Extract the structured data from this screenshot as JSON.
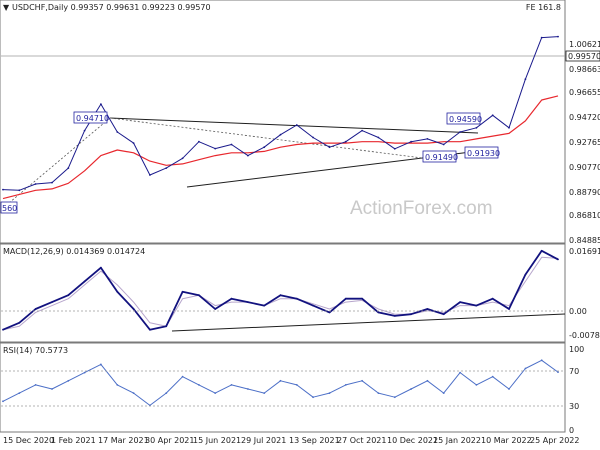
{
  "header": {
    "symbol_title": "USDCHF,Daily  0.99357 0.99631 0.99223 0.99570",
    "fe_label": "FE 161.8",
    "watermark": "ActionForex.com"
  },
  "colors": {
    "price": "#1a1a8c",
    "ema": "#e8282e",
    "macd_main": "#12127f",
    "macd_signal": "#b7a6cc",
    "rsi": "#4c6fc7",
    "trendline": "#1f1f1f",
    "annot_text": "#2424a0"
  },
  "chart_data": [
    {
      "type": "line",
      "title": "USDCHF,Daily  0.99357 0.99631 0.99223 0.99570",
      "x": [
        "2020-12-15",
        "2021-01-01",
        "2021-01-15",
        "2021-02-01",
        "2021-02-15",
        "2021-03-01",
        "2021-03-17",
        "2021-04-01",
        "2021-04-15",
        "2021-04-30",
        "2021-05-15",
        "2021-06-01",
        "2021-06-15",
        "2021-07-01",
        "2021-07-15",
        "2021-07-29",
        "2021-08-15",
        "2021-09-01",
        "2021-09-13",
        "2021-10-01",
        "2021-10-15",
        "2021-10-27",
        "2021-11-15",
        "2021-12-01",
        "2021-12-10",
        "2021-12-25",
        "2022-01-10",
        "2022-01-25",
        "2022-02-10",
        "2022-02-25",
        "2022-03-10",
        "2022-03-25",
        "2022-04-10",
        "2022-04-25",
        "2022-04-28"
      ],
      "series": [
        {
          "name": "Price",
          "values": [
            0.8855,
            0.885,
            0.8895,
            0.8905,
            0.901,
            0.928,
            0.9471,
            0.927,
            0.919,
            0.896,
            0.901,
            0.908,
            0.92,
            0.915,
            0.918,
            0.91,
            0.916,
            0.925,
            0.932,
            0.923,
            0.916,
            0.92,
            0.928,
            0.923,
            0.9149,
            0.92,
            0.922,
            0.918,
            0.927,
            0.93,
            0.939,
            0.93,
            0.965,
            0.995,
            0.9957
          ]
        },
        {
          "name": "EMA",
          "values": [
            0.879,
            0.882,
            0.885,
            0.886,
            0.89,
            0.899,
            0.91,
            0.914,
            0.912,
            0.906,
            0.903,
            0.904,
            0.907,
            0.91,
            0.912,
            0.912,
            0.913,
            0.916,
            0.918,
            0.919,
            0.919,
            0.919,
            0.92,
            0.92,
            0.919,
            0.919,
            0.919,
            0.92,
            0.92,
            0.922,
            0.924,
            0.926,
            0.935,
            0.95,
            0.953
          ]
        }
      ],
      "ylim": [
        0.847,
        1.012
      ],
      "yticks": [
        "1.00621",
        "0.98663",
        "0.96655",
        "0.94720",
        "0.92765",
        "0.90770",
        "0.88790",
        "0.86810",
        "0.84885"
      ],
      "last_price_label": "0.99570",
      "xticks": [
        "15 Dec 2020",
        "1 Feb 2021",
        "17 Mar 2021",
        "30 Apr 2021",
        "15 Jun 2021",
        "29 Jul 2021",
        "13 Sep 2021",
        "27 Oct 2021",
        "10 Dec 2021",
        "25 Jan 2022",
        "10 Mar 2022",
        "25 Apr 2022"
      ],
      "annotations": [
        "0.94710",
        "0.94590",
        "0.91490",
        "0.91930",
        "560"
      ],
      "grid": false
    },
    {
      "type": "line",
      "title": "MACD(12,26,9) 0.014369 0.014724",
      "series": [
        {
          "name": "MACD",
          "values": [
            -0.006,
            -0.004,
            0.0,
            0.002,
            0.004,
            0.008,
            0.012,
            0.005,
            0.0,
            -0.006,
            -0.005,
            0.005,
            0.004,
            0.0,
            0.003,
            0.002,
            0.001,
            0.004,
            0.003,
            0.001,
            -0.001,
            0.003,
            0.003,
            -0.001,
            -0.002,
            -0.0015,
            0.0,
            -0.0015,
            0.002,
            0.001,
            0.003,
            0.0,
            0.01,
            0.0169,
            0.0144
          ]
        },
        {
          "name": "Signal",
          "values": [
            -0.006,
            -0.005,
            -0.001,
            0.001,
            0.003,
            0.007,
            0.011,
            0.007,
            0.002,
            -0.004,
            -0.005,
            0.003,
            0.004,
            0.001,
            0.002,
            0.002,
            0.001,
            0.003,
            0.003,
            0.0015,
            0.0,
            0.002,
            0.0025,
            0.0,
            -0.0015,
            -0.0015,
            -0.0005,
            -0.001,
            0.001,
            0.001,
            0.002,
            0.001,
            0.008,
            0.015,
            0.0147
          ]
        }
      ],
      "ylim": [
        -0.009,
        0.018
      ],
      "yticks": [
        "0.016914",
        "0.00",
        "-0.007839"
      ]
    },
    {
      "type": "line",
      "title": "RSI(14) 70.5773",
      "series": [
        {
          "name": "RSI",
          "values": [
            35,
            45,
            55,
            50,
            60,
            70,
            80,
            55,
            45,
            30,
            45,
            65,
            55,
            45,
            55,
            50,
            45,
            60,
            55,
            40,
            45,
            55,
            60,
            45,
            40,
            50,
            60,
            45,
            70,
            55,
            65,
            50,
            75,
            85,
            70.5773
          ]
        }
      ],
      "ylim": [
        0,
        100
      ],
      "yticks": [
        "100",
        "70",
        "30",
        "0"
      ]
    }
  ]
}
